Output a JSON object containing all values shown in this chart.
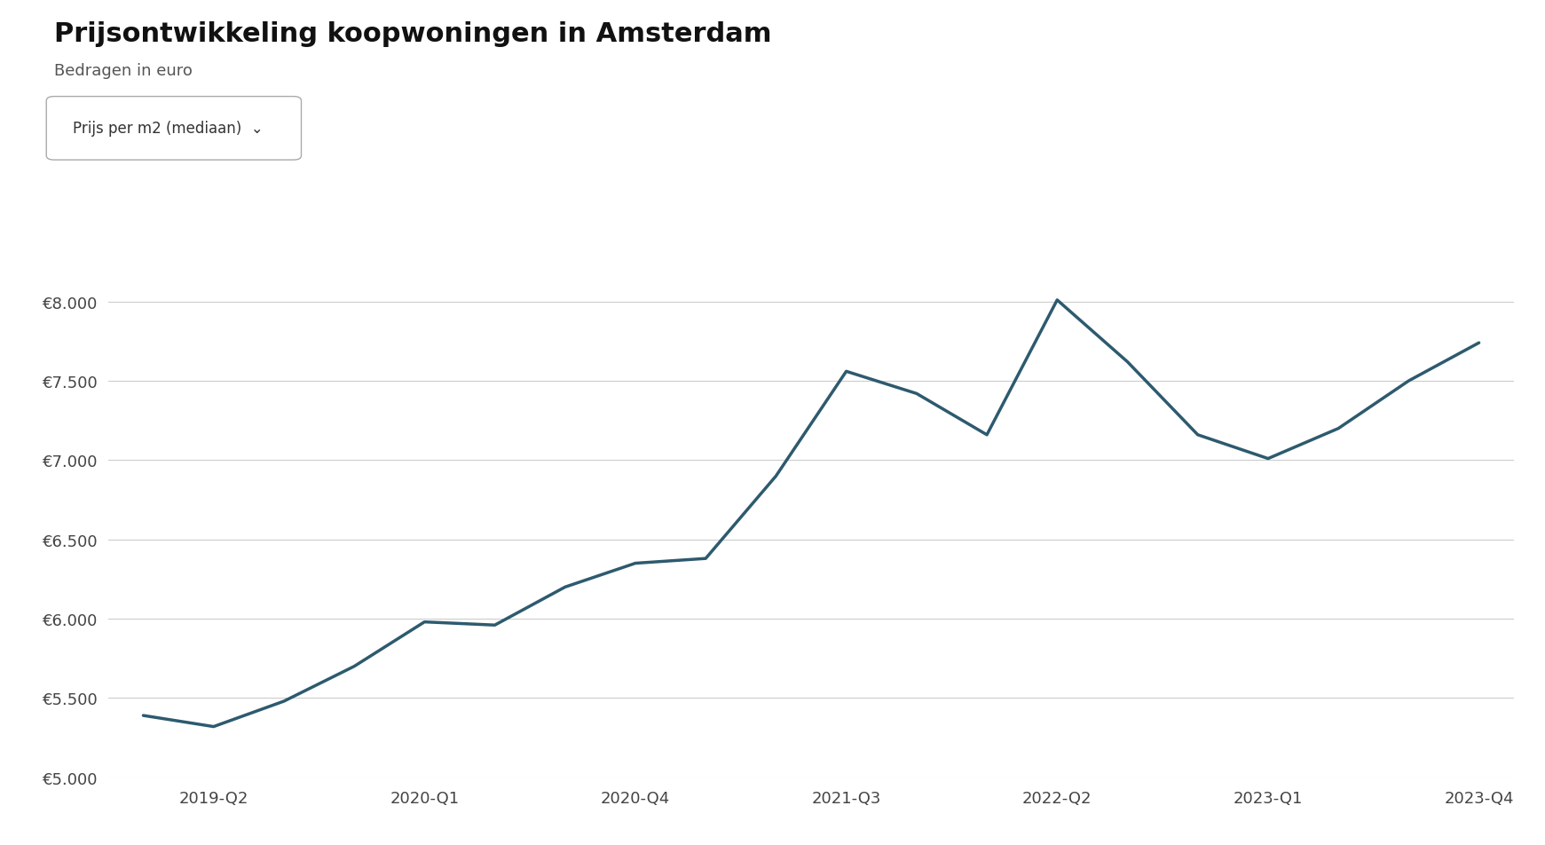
{
  "title": "Prijsontwikkeling koopwoningen in Amsterdam",
  "subtitle": "Bedragen in euro",
  "dropdown_text": "Prijs per m2 (mediaan)  ⌄",
  "x_labels": [
    "2019-Q2",
    "2020-Q1",
    "2020-Q4",
    "2021-Q3",
    "2022-Q2",
    "2023-Q1",
    "2023-Q4"
  ],
  "quarters": [
    "2019-Q1",
    "2019-Q2",
    "2019-Q3",
    "2019-Q4",
    "2020-Q1",
    "2020-Q2",
    "2020-Q3",
    "2020-Q4",
    "2021-Q1",
    "2021-Q2",
    "2021-Q3",
    "2021-Q4",
    "2022-Q1",
    "2022-Q2",
    "2022-Q3",
    "2022-Q4",
    "2023-Q1",
    "2023-Q2",
    "2023-Q3",
    "2023-Q4"
  ],
  "values": [
    5390,
    5320,
    5480,
    5700,
    5980,
    5960,
    6200,
    6350,
    6380,
    6900,
    7560,
    7420,
    7160,
    8010,
    7620,
    7160,
    7010,
    7200,
    7500,
    7740
  ],
  "line_color": "#2d5a6e",
  "background_color": "#ffffff",
  "grid_color": "#cccccc",
  "ylim": [
    5000,
    8200
  ],
  "yticks": [
    5000,
    5500,
    6000,
    6500,
    7000,
    7500,
    8000
  ],
  "title_fontsize": 22,
  "subtitle_fontsize": 13,
  "tick_fontsize": 13,
  "line_width": 2.5
}
